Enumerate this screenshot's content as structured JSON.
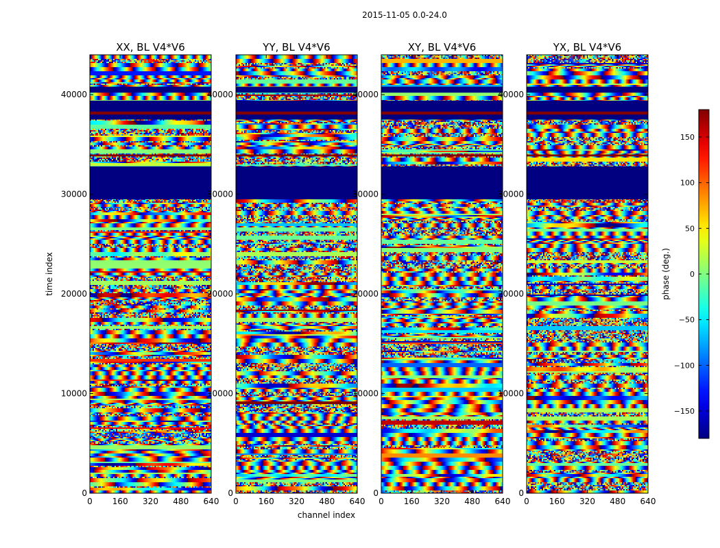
{
  "chart_data": {
    "type": "heatmap",
    "title": "2015-11-05 0.0-24.0",
    "xlabel": "channel index",
    "ylabel": "time index",
    "xlim": [
      0,
      640
    ],
    "ylim": [
      0,
      44000
    ],
    "x_ticks": [
      "0",
      "160",
      "320",
      "480",
      "640"
    ],
    "x_tick_values": [
      0,
      160,
      320,
      480,
      640
    ],
    "y_ticks": [
      "0",
      "10000",
      "20000",
      "30000",
      "40000"
    ],
    "y_tick_values": [
      0,
      10000,
      20000,
      30000,
      40000
    ],
    "panels": [
      {
        "title": "XX, BL V4*V6"
      },
      {
        "title": "YY, BL V4*V6"
      },
      {
        "title": "XY, BL V4*V6"
      },
      {
        "title": "YX, BL V4*V6"
      }
    ],
    "colorbar": {
      "label": "phase (deg.)",
      "range": [
        -180,
        180
      ],
      "ticks": [
        "−150",
        "−100",
        "−50",
        "0",
        "50",
        "100",
        "150"
      ],
      "tick_values": [
        -150,
        -100,
        -50,
        0,
        50,
        100,
        150
      ],
      "colormap": "jet"
    },
    "constant_bands": [
      {
        "t0": 29500,
        "t1": 32800,
        "value": -180
      },
      {
        "t0": 37500,
        "t1": 39400,
        "value": -180
      },
      {
        "t0": 38000,
        "t1": 38300,
        "value": 180
      },
      {
        "t0": 40200,
        "t1": 40800,
        "value": -180
      },
      {
        "t0": 33800,
        "t1": 34000,
        "value": 180
      }
    ]
  }
}
